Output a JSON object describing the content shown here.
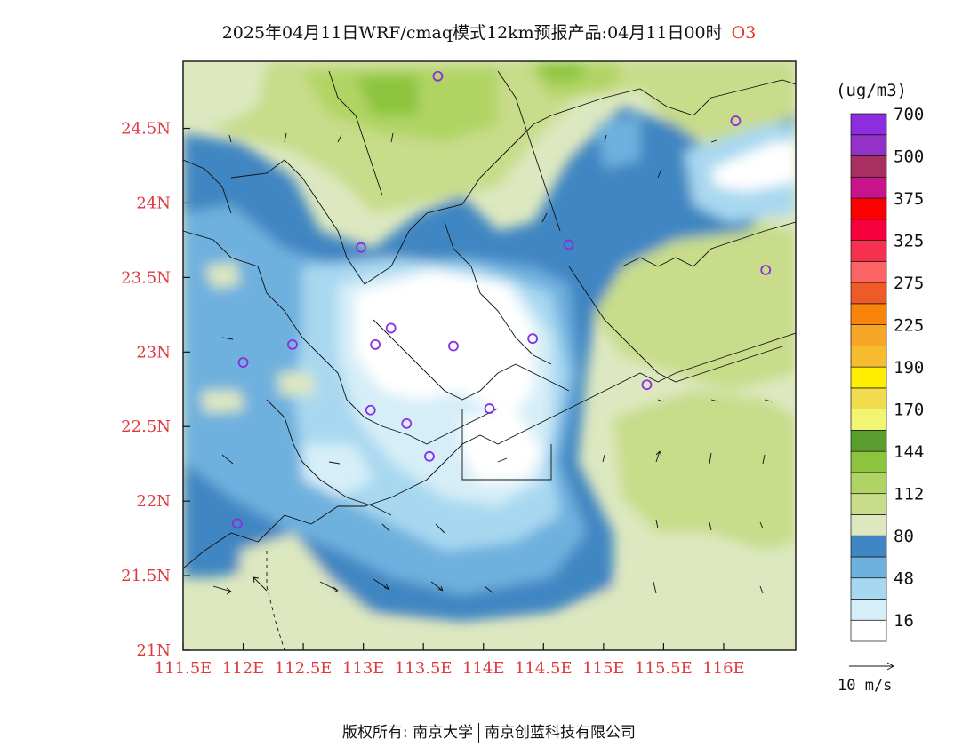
{
  "title": "2025年04月11日WRF/cmaq模式12km预报产品:04月11日00时",
  "pollutant": "O3",
  "unit": "(ug/m3)",
  "vector_scale_label": "10 m/s",
  "copyright": {
    "prefix": "版权所有:",
    "org1": "南京大学",
    "org2": "南京创蓝科技有限公司"
  },
  "axes": {
    "x_ticks": [
      "111.5E",
      "112E",
      "112.5E",
      "113E",
      "113.5E",
      "114E",
      "114.5E",
      "115E",
      "115.5E",
      "116E"
    ],
    "y_ticks": [
      "21N",
      "21.5N",
      "22N",
      "22.5N",
      "23N",
      "23.5N",
      "24N",
      "24.5N"
    ],
    "lon_range": [
      111.5,
      116.6
    ],
    "lat_range": [
      21.0,
      24.95
    ]
  },
  "colorbar": {
    "labels": [
      "16",
      "48",
      "80",
      "112",
      "144",
      "170",
      "190",
      "225",
      "275",
      "325",
      "375",
      "500",
      "700"
    ],
    "colors": [
      "#ffffff",
      "#d6eef8",
      "#a8d8f0",
      "#6eb0de",
      "#3f86c2",
      "#dde8c0",
      "#c8dc8a",
      "#b0d464",
      "#8cc43e",
      "#5a9e30",
      "#f2f572",
      "#f0dc4c",
      "#ffee00",
      "#f8bc30",
      "#f8a628",
      "#f8840a",
      "#ee5a28",
      "#fc6466",
      "#f83050",
      "#f8003e",
      "#fc0000",
      "#c8148a",
      "#a83060",
      "#9432c8",
      "#8a2ee0"
    ]
  },
  "monitoring_sites": [
    {
      "lon": 113.62,
      "lat": 24.85
    },
    {
      "lon": 116.1,
      "lat": 24.55
    },
    {
      "lon": 114.71,
      "lat": 23.72
    },
    {
      "lon": 112.98,
      "lat": 23.7
    },
    {
      "lon": 116.35,
      "lat": 23.55
    },
    {
      "lon": 112.41,
      "lat": 23.05
    },
    {
      "lon": 113.1,
      "lat": 23.05
    },
    {
      "lon": 113.23,
      "lat": 23.16
    },
    {
      "lon": 113.75,
      "lat": 23.04
    },
    {
      "lon": 114.41,
      "lat": 23.09
    },
    {
      "lon": 112.0,
      "lat": 22.93
    },
    {
      "lon": 115.36,
      "lat": 22.78
    },
    {
      "lon": 113.06,
      "lat": 22.61
    },
    {
      "lon": 114.05,
      "lat": 22.62
    },
    {
      "lon": 113.36,
      "lat": 22.52
    },
    {
      "lon": 113.55,
      "lat": 22.3
    },
    {
      "lon": 111.95,
      "lat": 21.85
    }
  ]
}
